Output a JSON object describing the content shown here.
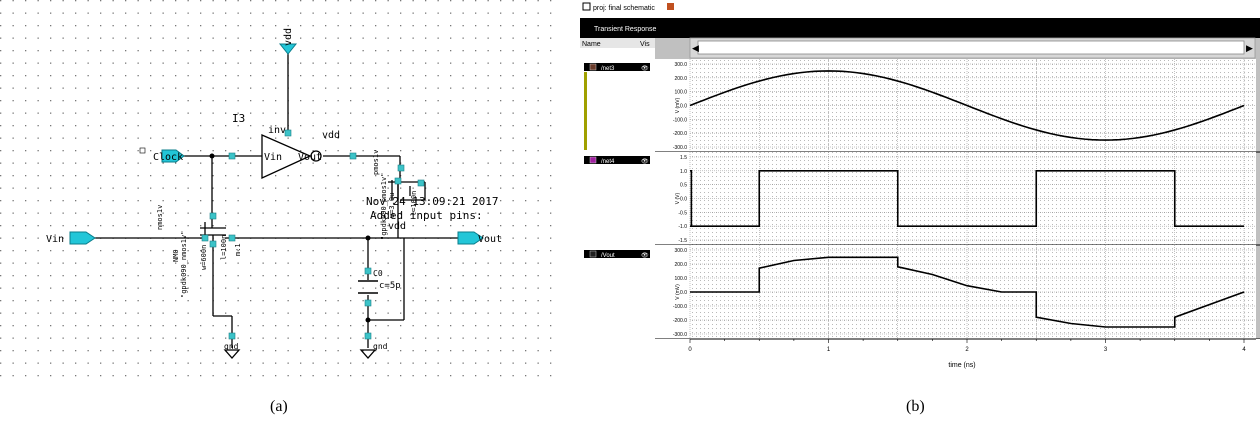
{
  "figure": {
    "caption_a": "(a)",
    "caption_b": "(b)"
  },
  "schematic": {
    "instance_name": "I3",
    "inverter_type": "inv",
    "vdd_top": "vdd",
    "vdd_inv": "vdd",
    "vdd_right": "vdd",
    "pin_clock": "Clock",
    "pin_vin": "Vin",
    "pin_vout": "Vout",
    "inv_in": "Vin",
    "inv_out": "Vout",
    "gnd_left": "gnd",
    "gnd_right": "gnd",
    "cap_name": "C0",
    "cap_value": "c=5p",
    "timestamp": "Nov 24 13:09:21 2017",
    "status_note": "Added input pins:",
    "nmos_model": "nmos1v",
    "nmos_lib": "\"gpdk090_nmos1v\"",
    "nmos_w": "w=600n",
    "nmos_l": "l=100n",
    "nmos_m": "m:1",
    "nmos_label": "NM0",
    "pmos_model": "pmos1v",
    "pmos_lib": "\"gpdk090_pmos1v\"",
    "pmos_w": "w=3.0u",
    "pmos_l": "l=100n"
  },
  "waveform": {
    "toolbar_title": "proj: final schematic",
    "window_title": "Transient Response",
    "col_name": "Name",
    "col_vis": "Vis",
    "xlabel": "time (ns)",
    "x_ticks": [
      "0",
      "1",
      "2",
      "3",
      "4"
    ],
    "signals": [
      {
        "name": "/net3",
        "color": "#6b3b2a",
        "ylabel": "V (mV)",
        "y_ticks": [
          "300.0",
          "200.0",
          "100.0",
          "0.0",
          "-100.0",
          "-200.0",
          "-300.0"
        ]
      },
      {
        "name": "/net4",
        "color": "#a020a0",
        "ylabel": "V (V)",
        "y_ticks": [
          "1.5",
          "1.0",
          "0.5",
          "0.0",
          "-0.5",
          "-1.0",
          "-1.5"
        ]
      },
      {
        "name": "/Vout",
        "color": "#202020",
        "ylabel": "V (mV)",
        "y_ticks": [
          "300.0",
          "200.0",
          "100.0",
          "0.0",
          "-100.0",
          "-200.0",
          "-300.0"
        ]
      }
    ]
  },
  "chart_data": [
    {
      "type": "line",
      "title": "",
      "xlabel": "time (ns)",
      "ylabel": "V (mV)",
      "xlim": [
        0,
        4
      ],
      "ylim": [
        -300,
        300
      ],
      "grid": true,
      "series": [
        {
          "name": "/net3",
          "x": [
            0,
            0.5,
            1,
            1.5,
            2,
            2.5,
            3,
            3.5,
            4
          ],
          "y": [
            0,
            177,
            250,
            177,
            0,
            -177,
            -250,
            -177,
            0
          ]
        }
      ]
    },
    {
      "type": "line",
      "title": "",
      "xlabel": "time (ns)",
      "ylabel": "V (V)",
      "xlim": [
        0,
        4
      ],
      "ylim": [
        -1.5,
        1.5
      ],
      "grid": true,
      "series": [
        {
          "name": "/net4",
          "x": [
            0,
            0.5,
            0.5,
            1.5,
            1.5,
            2.5,
            2.5,
            3.5,
            3.5,
            4
          ],
          "y": [
            -1,
            -1,
            1,
            1,
            -1,
            -1,
            1,
            1,
            -1,
            -1
          ],
          "pre": [
            [
              0,
              1
            ],
            [
              0.01,
              1
            ],
            [
              0.01,
              -1
            ]
          ]
        }
      ]
    },
    {
      "type": "line",
      "title": "",
      "xlabel": "time (ns)",
      "ylabel": "V (mV)",
      "xlim": [
        0,
        4
      ],
      "ylim": [
        -300,
        300
      ],
      "grid": true,
      "series": [
        {
          "name": "/Vout",
          "x": [
            0,
            0.5,
            0.5,
            0.75,
            1.0,
            1.25,
            1.5,
            1.5,
            1.75,
            2.0,
            2.25,
            2.5,
            2.5,
            2.75,
            3.0,
            3.25,
            3.5,
            3.5,
            4.0
          ],
          "y": [
            0,
            0,
            170,
            225,
            248,
            248,
            248,
            180,
            125,
            45,
            0,
            0,
            -180,
            -225,
            -250,
            -250,
            -250,
            -180,
            0
          ]
        }
      ]
    }
  ]
}
